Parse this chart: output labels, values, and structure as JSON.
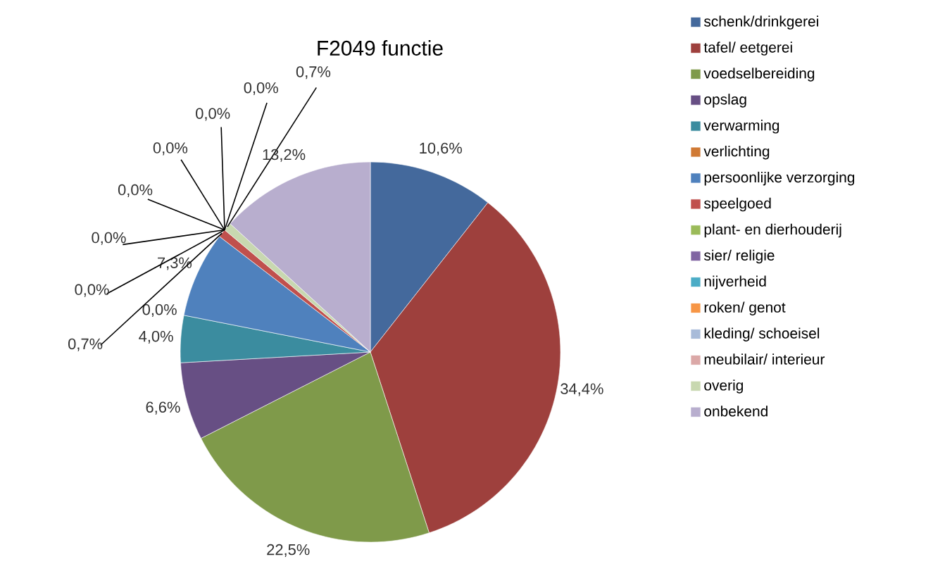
{
  "chart_data": {
    "type": "pie",
    "title": "F2049 functie",
    "categories": [
      "schenk/drinkgerei",
      "tafel/ eetgerei",
      "voedselbereiding",
      "opslag",
      "verwarming",
      "verlichting",
      "persoonlijke verzorging",
      "speelgoed",
      "plant- en dierhouderij",
      "sier/ religie",
      "nijverheid",
      "roken/ genot",
      "kleding/ schoeisel",
      "meubilair/ interieur",
      "overig",
      "onbekend"
    ],
    "values": [
      10.6,
      34.4,
      22.5,
      6.6,
      4.0,
      0.0,
      7.3,
      0.7,
      0.0,
      0.0,
      0.0,
      0.0,
      0.0,
      0.0,
      0.7,
      13.2
    ],
    "value_labels": [
      "10,6%",
      "34,4%",
      "22,5%",
      "6,6%",
      "4,0%",
      "0,0%",
      "7,3%",
      "0,7%",
      "0,0%",
      "0,0%",
      "0,0%",
      "0,0%",
      "0,0%",
      "0,0%",
      "0,7%",
      "13,2%"
    ],
    "colors": [
      "#44699C",
      "#9E403D",
      "#7F9A4A",
      "#674F84",
      "#3B8C9F",
      "#D07A34",
      "#4F81BD",
      "#C0504D",
      "#9BBB59",
      "#8064A2",
      "#4BACC6",
      "#F79646",
      "#A8BBD9",
      "#DBA8A7",
      "#C8D8B0",
      "#B8AECE"
    ],
    "legend": "right"
  }
}
